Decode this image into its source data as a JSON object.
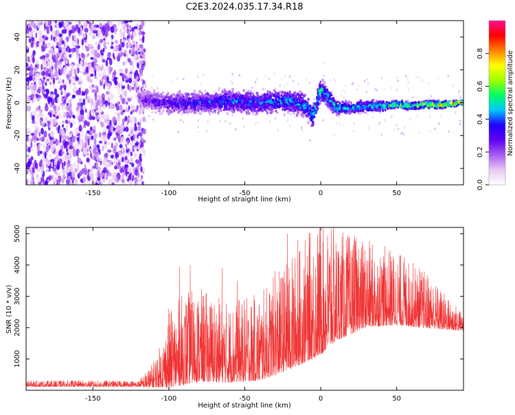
{
  "title": "C2E3.2024.035.17.34.R18",
  "chart_data": [
    {
      "type": "heatmap",
      "title": "C2E3.2024.035.17.34.R18",
      "xlabel": "Height of straight line (km)",
      "ylabel": "Frequency (Hz)",
      "xlim": [
        -194,
        94
      ],
      "ylim": [
        -50,
        50
      ],
      "x_ticks": [
        -150,
        -100,
        -50,
        0,
        50
      ],
      "y_ticks": [
        -40,
        -20,
        0,
        20,
        40
      ],
      "colorbar": {
        "label": "Normalized spectral amplitude",
        "range": [
          0,
          1
        ],
        "ticks": [
          0.0,
          0.2,
          0.4,
          0.6,
          0.8
        ],
        "colors": [
          "#ffffff",
          "#e9c8f4",
          "#a65cf0",
          "#6000f0",
          "#1e00ff",
          "#00c8ff",
          "#00ff64",
          "#a0ff00",
          "#ffff00",
          "#ff8000",
          "#ff0000",
          "#ff1093"
        ]
      },
      "noise_region": {
        "x_start": -194,
        "x_end": -120
      },
      "ridge": {
        "x": [
          -120,
          -100,
          -80,
          -60,
          -40,
          -20,
          -10,
          -5,
          0,
          5,
          10,
          20,
          30,
          40,
          50,
          60,
          70,
          80,
          94
        ],
        "center_hz": [
          2,
          0,
          0,
          1,
          0,
          1,
          -2,
          -8,
          8,
          3,
          -3,
          -3,
          -2,
          -2,
          -1,
          -2,
          -1,
          -1,
          0
        ],
        "spread_hz": [
          6,
          6,
          6,
          6,
          6,
          6,
          6,
          6,
          6,
          5,
          4,
          3,
          3,
          3,
          2,
          2,
          2,
          2,
          1
        ],
        "peak_amplitude": [
          0.25,
          0.35,
          0.4,
          0.45,
          0.45,
          0.5,
          0.5,
          0.6,
          0.55,
          0.55,
          0.55,
          0.55,
          0.6,
          0.6,
          0.65,
          0.7,
          0.75,
          0.85,
          0.9
        ]
      }
    },
    {
      "type": "line",
      "xlabel": "Height of straight line (km)",
      "ylabel": "SNR (10 * v/v)",
      "xlim": [
        -194,
        94
      ],
      "ylim": [
        0,
        5200
      ],
      "x_ticks": [
        -150,
        -100,
        -50,
        0,
        50
      ],
      "y_ticks": [
        1000,
        2000,
        3000,
        4000,
        5000
      ],
      "color": "#f03232",
      "series": [
        {
          "envelope": {
            "x": [
              -194,
              -120,
              -112,
              -105,
              -100,
              -90,
              -80,
              -60,
              -40,
              -20,
              -10,
              0,
              10,
              30,
              50,
              70,
              85,
              94
            ],
            "base": [
              150,
              150,
              200,
              350,
              500,
              700,
              800,
              700,
              800,
              1300,
              1600,
              1900,
              2200,
              2500,
              2500,
              2300,
              2100,
              2000
            ],
            "amp": [
              100,
              100,
              350,
              700,
              1200,
              1500,
              1500,
              1300,
              1400,
              1800,
              2000,
              2200,
              1800,
              1400,
              1200,
              900,
              500,
              300
            ]
          },
          "spikes": [
            {
              "x": -100,
              "y": 2600
            },
            {
              "x": -93,
              "y": 3950
            },
            {
              "x": -86,
              "y": 4000
            },
            {
              "x": -65,
              "y": 3900
            },
            {
              "x": -55,
              "y": 3500
            },
            {
              "x": -30,
              "y": 3800
            },
            {
              "x": -22,
              "y": 5000
            },
            {
              "x": -15,
              "y": 4800
            },
            {
              "x": -9,
              "y": 3700
            },
            {
              "x": 0,
              "y": 4200
            },
            {
              "x": 7,
              "y": 5150
            },
            {
              "x": 10,
              "y": 4700
            },
            {
              "x": 15,
              "y": 4200
            },
            {
              "x": 25,
              "y": 4500
            },
            {
              "x": 40,
              "y": 3950
            }
          ]
        }
      ]
    }
  ]
}
